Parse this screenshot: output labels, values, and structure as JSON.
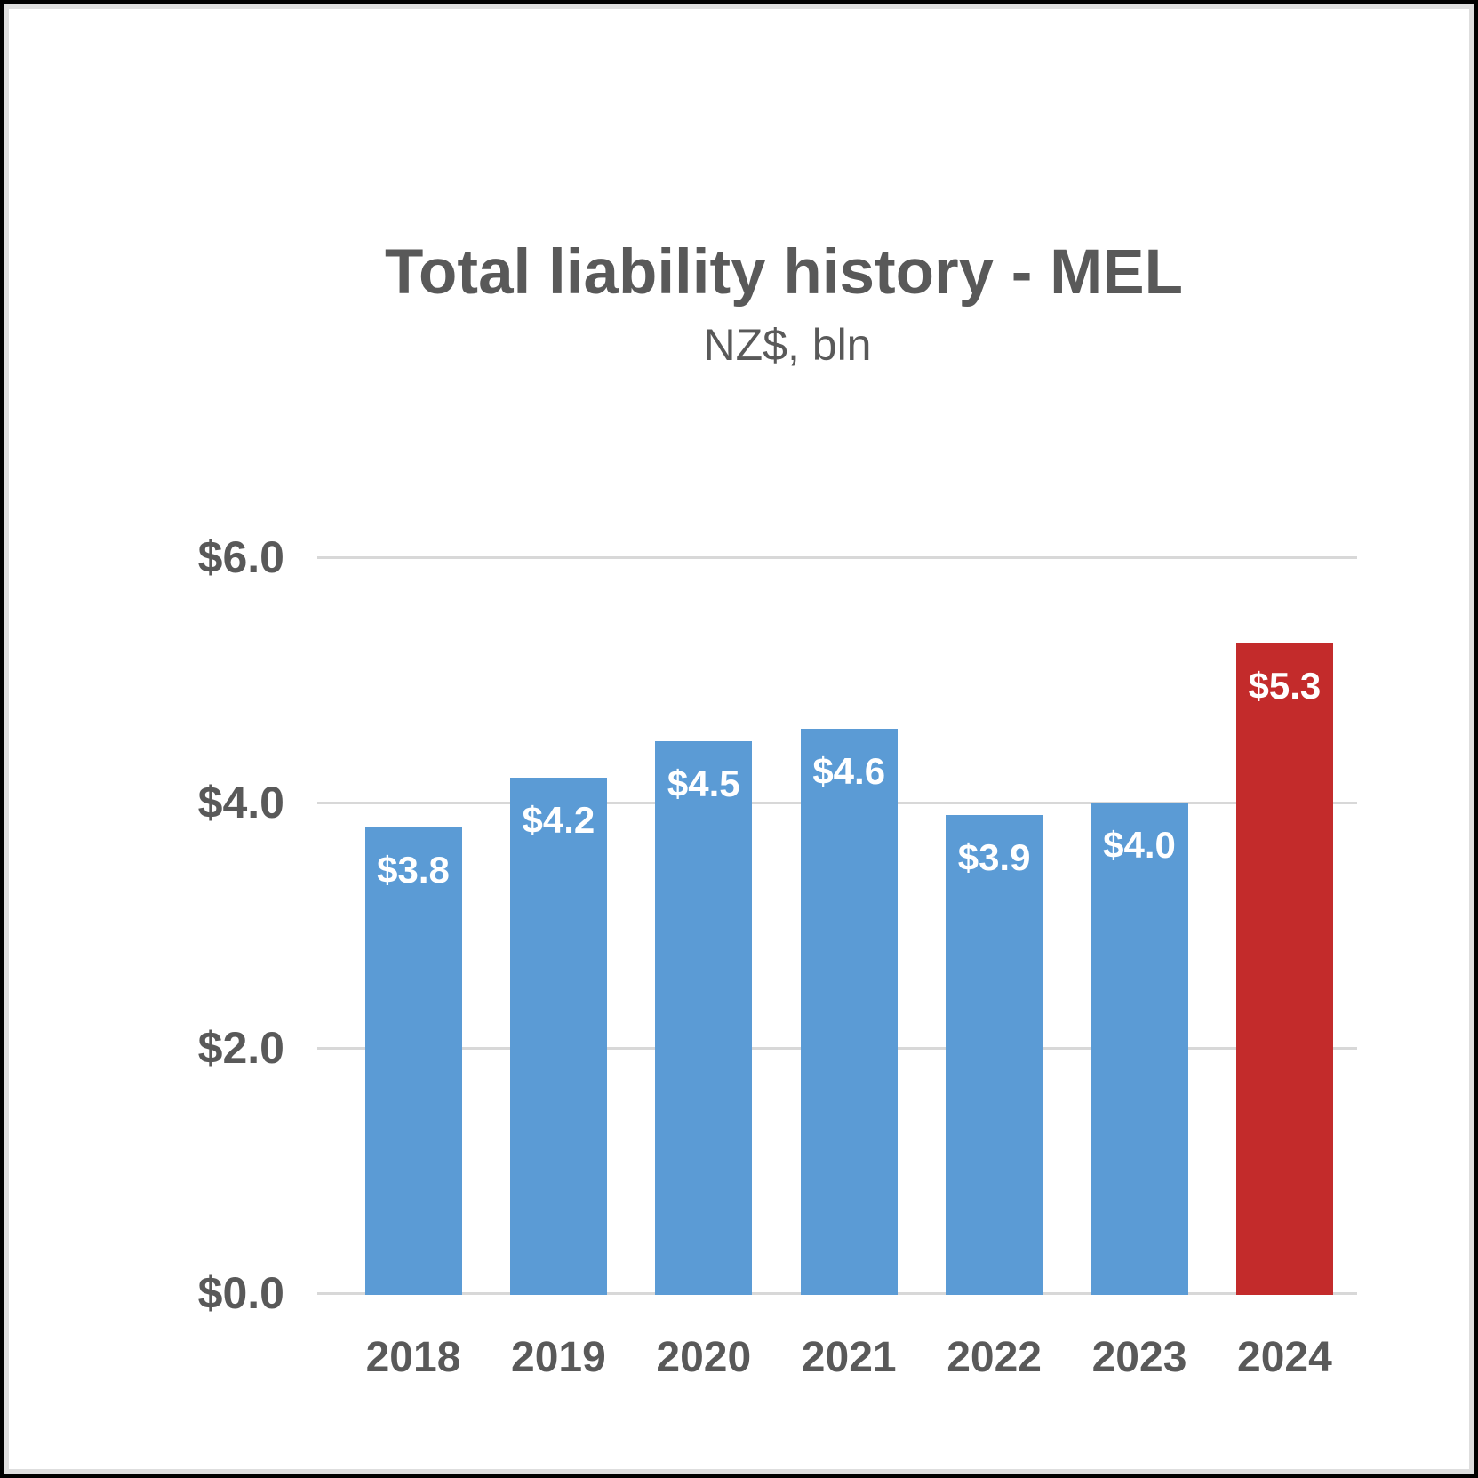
{
  "chart_data": {
    "type": "bar",
    "title": "Total liability history - MEL",
    "subtitle": "NZ$, bln",
    "categories": [
      "2018",
      "2019",
      "2020",
      "2021",
      "2022",
      "2023",
      "2024"
    ],
    "values": [
      3.8,
      4.2,
      4.5,
      4.6,
      3.9,
      4.0,
      5.3
    ],
    "value_labels": [
      "$3.8",
      "$4.2",
      "$4.5",
      "$4.6",
      "$3.9",
      "$4.0",
      "$5.3"
    ],
    "highlight_category": "2024",
    "xlabel": "",
    "ylabel": "",
    "ylim": [
      0,
      6.0
    ],
    "y_tick_values": [
      6.0,
      4.0,
      2.0,
      0.0
    ],
    "y_tick_labels": [
      "$6.0",
      "$4.0",
      "$2.0",
      "$0.0"
    ],
    "grid": true,
    "legend_position": "none"
  },
  "colors": {
    "bar_default": "#5B9BD5",
    "bar_highlight": "#C32B2B",
    "text": "#595959",
    "value_label_text": "#FFFFFF",
    "gridline": "#D8D8D8",
    "outer_border": "#000000",
    "inner_border": "#DEDEDE",
    "background": "#FFFFFF"
  }
}
